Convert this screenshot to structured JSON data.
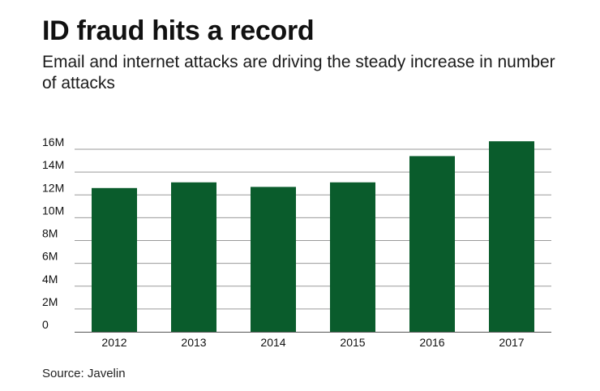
{
  "header": {
    "title": "ID fraud hits a record",
    "subtitle": "Email and internet attacks are driving the steady increase in number of attacks"
  },
  "footer": {
    "source": "Source: Javelin"
  },
  "colors": {
    "bar": "#0a5c2c",
    "gridline": "#9a9a9a",
    "axis": "#555555",
    "text": "#111111"
  },
  "chart_data": {
    "type": "bar",
    "title": "",
    "xlabel": "",
    "ylabel": "",
    "categories": [
      "2012",
      "2013",
      "2014",
      "2015",
      "2016",
      "2017"
    ],
    "values": [
      12.6,
      13.1,
      12.7,
      13.1,
      15.4,
      16.7
    ],
    "value_unit": "M",
    "ylim": [
      0,
      16
    ],
    "y_ticks": [
      0,
      2,
      4,
      6,
      8,
      10,
      12,
      14,
      16
    ],
    "y_tick_labels": [
      "0",
      "2M",
      "4M",
      "6M",
      "8M",
      "10M",
      "12M",
      "14M",
      "16M"
    ],
    "grid": true,
    "legend": "none"
  }
}
